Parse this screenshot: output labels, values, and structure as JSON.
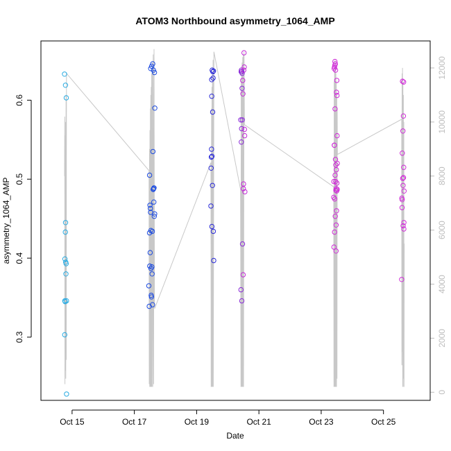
{
  "chart_data": {
    "type": "scatter",
    "title": "ATOM3 Northbound asymmetry_1064_AMP",
    "xlabel": "Date",
    "ylabel": "asymmetry_1064_AMP",
    "xlim": [
      "2016-10-14T00:00",
      "2016-10-26T12:00"
    ],
    "ylim": [
      0.22,
      0.675
    ],
    "y2lim": [
      -300,
      13000
    ],
    "x_ticks": [
      {
        "value": "2016-10-15T00:00",
        "label": "Oct 15"
      },
      {
        "value": "2016-10-17T00:00",
        "label": "Oct 17"
      },
      {
        "value": "2016-10-19T00:00",
        "label": "Oct 19"
      },
      {
        "value": "2016-10-21T00:00",
        "label": "Oct 21"
      },
      {
        "value": "2016-10-23T00:00",
        "label": "Oct 23"
      },
      {
        "value": "2016-10-25T00:00",
        "label": "Oct 25"
      }
    ],
    "y_ticks": [
      0.3,
      0.4,
      0.5,
      0.6
    ],
    "y2_ticks": [
      0,
      2000,
      4000,
      6000,
      8000,
      10000,
      12000
    ],
    "grid": false,
    "colors": {
      "axis": "#000000",
      "secondary_axis": "#bdbdbd",
      "altitude_line": "#c8c8c8",
      "flight_1": "#29abe2",
      "flight_2": "#1a49e0",
      "flight_3": "#2a2ad8",
      "flight_4": "#8a2ad8",
      "flight_5": "#c42ad8",
      "flight_6": "#d02ad8"
    },
    "series": [
      {
        "color_key": "flight_1",
        "points": [
          [
            "2016-10-14T18:10",
            0.633
          ],
          [
            "2016-10-14T18:20",
            0.303
          ],
          [
            "2016-10-14T18:25",
            0.346
          ],
          [
            "2016-10-14T18:30",
            0.399
          ],
          [
            "2016-10-14T18:40",
            0.345
          ],
          [
            "2016-10-14T18:50",
            0.433
          ],
          [
            "2016-10-14T18:55",
            0.619
          ],
          [
            "2016-10-14T19:00",
            0.445
          ],
          [
            "2016-10-14T19:05",
            0.395
          ],
          [
            "2016-10-14T19:15",
            0.38
          ],
          [
            "2016-10-14T19:25",
            0.393
          ],
          [
            "2016-10-14T19:30",
            0.603
          ],
          [
            "2016-10-14T19:40",
            0.346
          ],
          [
            "2016-10-14T19:45",
            0.228
          ]
        ]
      },
      {
        "color_key": "flight_2",
        "points": [
          [
            "2016-10-17T11:10",
            0.365
          ],
          [
            "2016-10-17T11:30",
            0.339
          ],
          [
            "2016-10-17T11:40",
            0.432
          ],
          [
            "2016-10-17T11:45",
            0.505
          ],
          [
            "2016-10-17T11:50",
            0.39
          ],
          [
            "2016-10-17T12:00",
            0.467
          ],
          [
            "2016-10-17T12:10",
            0.407
          ],
          [
            "2016-10-17T12:20",
            0.463
          ],
          [
            "2016-10-17T12:30",
            0.458
          ],
          [
            "2016-10-17T12:35",
            0.64
          ],
          [
            "2016-10-17T12:45",
            0.435
          ],
          [
            "2016-10-17T12:50",
            0.387
          ],
          [
            "2016-10-17T13:00",
            0.353
          ],
          [
            "2016-10-17T13:10",
            0.351
          ],
          [
            "2016-10-17T13:20",
            0.643
          ],
          [
            "2016-10-17T13:30",
            0.389
          ],
          [
            "2016-10-17T13:40",
            0.38
          ],
          [
            "2016-10-17T13:50",
            0.434
          ],
          [
            "2016-10-17T14:00",
            0.341
          ],
          [
            "2016-10-17T14:10",
            0.646
          ],
          [
            "2016-10-17T14:20",
            0.535
          ],
          [
            "2016-10-17T14:30",
            0.487
          ],
          [
            "2016-10-17T14:40",
            0.638
          ],
          [
            "2016-10-17T14:50",
            0.488
          ],
          [
            "2016-10-17T15:00",
            0.471
          ],
          [
            "2016-10-17T15:10",
            0.489
          ],
          [
            "2016-10-17T15:20",
            0.453
          ],
          [
            "2016-10-17T15:30",
            0.635
          ],
          [
            "2016-10-17T15:40",
            0.456
          ],
          [
            "2016-10-17T15:45",
            0.59
          ]
        ]
      },
      {
        "color_key": "flight_3",
        "points": [
          [
            "2016-10-19T11:00",
            0.466
          ],
          [
            "2016-10-19T11:10",
            0.514
          ],
          [
            "2016-10-19T11:20",
            0.528
          ],
          [
            "2016-10-19T11:30",
            0.538
          ],
          [
            "2016-10-19T11:35",
            0.626
          ],
          [
            "2016-10-19T11:40",
            0.605
          ],
          [
            "2016-10-19T11:45",
            0.44
          ],
          [
            "2016-10-19T11:50",
            0.529
          ],
          [
            "2016-10-19T12:00",
            0.638
          ],
          [
            "2016-10-19T12:10",
            0.492
          ],
          [
            "2016-10-19T12:20",
            0.585
          ],
          [
            "2016-10-19T12:30",
            0.636
          ],
          [
            "2016-10-19T12:40",
            0.628
          ],
          [
            "2016-10-19T12:50",
            0.434
          ],
          [
            "2016-10-19T13:00",
            0.637
          ],
          [
            "2016-10-19T13:10",
            0.397
          ]
        ]
      },
      {
        "color_key": "flight_4",
        "points": [
          [
            "2016-10-20T10:00",
            0.575
          ],
          [
            "2016-10-20T10:10",
            0.36
          ],
          [
            "2016-10-20T10:20",
            0.636
          ],
          [
            "2016-10-20T10:25",
            0.547
          ],
          [
            "2016-10-20T10:30",
            0.638
          ],
          [
            "2016-10-20T10:40",
            0.564
          ],
          [
            "2016-10-20T10:45",
            0.636
          ],
          [
            "2016-10-20T10:50",
            0.346
          ],
          [
            "2016-10-20T11:00",
            0.615
          ],
          [
            "2016-10-20T11:05",
            0.634
          ],
          [
            "2016-10-20T11:10",
            0.575
          ],
          [
            "2016-10-20T11:20",
            0.418
          ]
        ]
      },
      {
        "color_key": "flight_5",
        "points": [
          [
            "2016-10-20T11:30",
            0.625
          ],
          [
            "2016-10-20T11:40",
            0.608
          ],
          [
            "2016-10-20T11:50",
            0.379
          ],
          [
            "2016-10-20T12:00",
            0.488
          ],
          [
            "2016-10-20T12:10",
            0.494
          ],
          [
            "2016-10-20T12:20",
            0.638
          ],
          [
            "2016-10-20T12:30",
            0.66
          ],
          [
            "2016-10-20T12:40",
            0.642
          ],
          [
            "2016-10-20T12:50",
            0.563
          ],
          [
            "2016-10-20T13:00",
            0.555
          ],
          [
            "2016-10-20T13:10",
            0.484
          ]
        ]
      },
      {
        "color_key": "flight_6",
        "points": [
          [
            "2016-10-23T09:40",
            0.477
          ],
          [
            "2016-10-23T09:45",
            0.497
          ],
          [
            "2016-10-23T09:50",
            0.414
          ],
          [
            "2016-10-23T10:00",
            0.64
          ],
          [
            "2016-10-23T10:05",
            0.543
          ],
          [
            "2016-10-23T10:10",
            0.543
          ],
          [
            "2016-10-23T10:15",
            0.642
          ],
          [
            "2016-10-23T10:20",
            0.433
          ],
          [
            "2016-10-23T10:25",
            0.475
          ],
          [
            "2016-10-23T10:30",
            0.644
          ],
          [
            "2016-10-23T10:35",
            0.649
          ],
          [
            "2016-10-23T10:40",
            0.589
          ],
          [
            "2016-10-23T10:45",
            0.505
          ],
          [
            "2016-10-23T10:50",
            0.453
          ],
          [
            "2016-10-23T10:55",
            0.646
          ],
          [
            "2016-10-23T11:00",
            0.525
          ],
          [
            "2016-10-23T11:05",
            0.638
          ],
          [
            "2016-10-23T11:10",
            0.497
          ],
          [
            "2016-10-23T11:15",
            0.518
          ],
          [
            "2016-10-23T11:20",
            0.486
          ],
          [
            "2016-10-23T11:25",
            0.409
          ],
          [
            "2016-10-23T11:30",
            0.442
          ],
          [
            "2016-10-23T11:35",
            0.488
          ],
          [
            "2016-10-23T11:40",
            0.512
          ],
          [
            "2016-10-23T11:45",
            0.61
          ],
          [
            "2016-10-23T11:50",
            0.46
          ],
          [
            "2016-10-23T11:55",
            0.485
          ],
          [
            "2016-10-23T12:00",
            0.625
          ],
          [
            "2016-10-23T12:05",
            0.495
          ],
          [
            "2016-10-23T12:10",
            0.606
          ],
          [
            "2016-10-23T12:15",
            0.555
          ],
          [
            "2016-10-23T12:20",
            0.487
          ],
          [
            "2016-10-23T12:25",
            0.52
          ],
          [
            "2016-10-25T14:00",
            0.373
          ],
          [
            "2016-10-25T14:10",
            0.476
          ],
          [
            "2016-10-25T14:20",
            0.464
          ],
          [
            "2016-10-25T14:25",
            0.474
          ],
          [
            "2016-10-25T14:30",
            0.533
          ],
          [
            "2016-10-25T14:40",
            0.624
          ],
          [
            "2016-10-25T14:50",
            0.501
          ],
          [
            "2016-10-25T15:00",
            0.561
          ],
          [
            "2016-10-25T15:05",
            0.492
          ],
          [
            "2016-10-25T15:10",
            0.441
          ],
          [
            "2016-10-25T15:20",
            0.58
          ],
          [
            "2016-10-25T15:25",
            0.502
          ],
          [
            "2016-10-25T15:30",
            0.623
          ],
          [
            "2016-10-25T15:35",
            0.515
          ],
          [
            "2016-10-25T15:40",
            0.437
          ],
          [
            "2016-10-25T15:45",
            0.445
          ],
          [
            "2016-10-25T15:50",
            0.485
          ]
        ]
      }
    ],
    "altitude_line": [
      [
        "2016-10-14T18:10",
        8000
      ],
      [
        "2016-10-14T18:20",
        10200
      ],
      [
        "2016-10-14T18:30",
        300
      ],
      [
        "2016-10-14T18:40",
        9500
      ],
      [
        "2016-10-14T18:50",
        800
      ],
      [
        "2016-10-14T19:00",
        10000
      ],
      [
        "2016-10-14T19:10",
        500
      ],
      [
        "2016-10-14T19:20",
        11000
      ],
      [
        "2016-10-14T19:30",
        1200
      ],
      [
        "2016-10-14T19:40",
        11800
      ],
      [
        "2016-10-17T11:20",
        8200
      ],
      [
        "2016-10-17T11:30",
        300
      ],
      [
        "2016-10-17T11:40",
        9000
      ],
      [
        "2016-10-17T11:50",
        200
      ],
      [
        "2016-10-17T12:00",
        9700
      ],
      [
        "2016-10-17T12:10",
        200
      ],
      [
        "2016-10-17T12:20",
        10500
      ],
      [
        "2016-10-17T12:30",
        200
      ],
      [
        "2016-10-17T12:40",
        11000
      ],
      [
        "2016-10-17T12:50",
        200
      ],
      [
        "2016-10-17T13:00",
        11300
      ],
      [
        "2016-10-17T13:10",
        200
      ],
      [
        "2016-10-17T13:20",
        11800
      ],
      [
        "2016-10-17T13:30",
        200
      ],
      [
        "2016-10-17T13:50",
        12200
      ],
      [
        "2016-10-17T14:10",
        200
      ],
      [
        "2016-10-17T14:30",
        12500
      ],
      [
        "2016-10-17T14:50",
        300
      ],
      [
        "2016-10-17T15:10",
        12700
      ],
      [
        "2016-10-17T15:30",
        3200
      ],
      [
        "2016-10-17T15:40",
        3100
      ],
      [
        "2016-10-19T11:00",
        8500
      ],
      [
        "2016-10-19T11:10",
        200
      ],
      [
        "2016-10-19T11:30",
        10500
      ],
      [
        "2016-10-19T11:40",
        200
      ],
      [
        "2016-10-19T11:50",
        11300
      ],
      [
        "2016-10-19T12:00",
        200
      ],
      [
        "2016-10-19T12:10",
        11800
      ],
      [
        "2016-10-19T12:20",
        200
      ],
      [
        "2016-10-19T12:40",
        12300
      ],
      [
        "2016-10-19T12:50",
        200
      ],
      [
        "2016-10-19T13:20",
        12600
      ],
      [
        "2016-10-20T09:50",
        7500
      ],
      [
        "2016-10-20T10:10",
        200
      ],
      [
        "2016-10-20T10:20",
        11500
      ],
      [
        "2016-10-20T10:30",
        200
      ],
      [
        "2016-10-20T10:40",
        12000
      ],
      [
        "2016-10-20T10:50",
        200
      ],
      [
        "2016-10-20T11:00",
        12200
      ],
      [
        "2016-10-20T11:10",
        200
      ],
      [
        "2016-10-20T11:30",
        12400
      ],
      [
        "2016-10-20T11:40",
        200
      ],
      [
        "2016-10-20T12:00",
        12500
      ],
      [
        "2016-10-20T12:10",
        200
      ],
      [
        "2016-10-20T12:30",
        12600
      ],
      [
        "2016-10-20T12:50",
        9900
      ],
      [
        "2016-10-23T09:40",
        7600
      ],
      [
        "2016-10-23T09:50",
        200
      ],
      [
        "2016-10-23T10:00",
        11500
      ],
      [
        "2016-10-23T10:10",
        200
      ],
      [
        "2016-10-23T10:20",
        11900
      ],
      [
        "2016-10-23T10:30",
        200
      ],
      [
        "2016-10-23T10:40",
        12300
      ],
      [
        "2016-10-23T10:50",
        200
      ],
      [
        "2016-10-23T11:00",
        12200
      ],
      [
        "2016-10-23T11:10",
        200
      ],
      [
        "2016-10-23T11:20",
        11800
      ],
      [
        "2016-10-23T11:30",
        200
      ],
      [
        "2016-10-23T11:40",
        11500
      ],
      [
        "2016-10-23T11:50",
        200
      ],
      [
        "2016-10-23T12:00",
        11000
      ],
      [
        "2016-10-23T12:10",
        500
      ],
      [
        "2016-10-23T12:20",
        10500
      ],
      [
        "2016-10-23T12:30",
        8800
      ],
      [
        "2016-10-25T14:00",
        10100
      ],
      [
        "2016-10-25T14:10",
        1000
      ],
      [
        "2016-10-25T14:20",
        11800
      ],
      [
        "2016-10-25T14:30",
        1500
      ],
      [
        "2016-10-25T14:40",
        12000
      ],
      [
        "2016-10-25T14:50",
        200
      ],
      [
        "2016-10-25T15:00",
        11500
      ],
      [
        "2016-10-25T15:10",
        200
      ],
      [
        "2016-10-25T15:20",
        11000
      ],
      [
        "2016-10-25T15:30",
        500
      ],
      [
        "2016-10-25T15:40",
        10000
      ],
      [
        "2016-10-25T15:50",
        200
      ],
      [
        "2016-10-25T16:00",
        5500
      ]
    ]
  }
}
